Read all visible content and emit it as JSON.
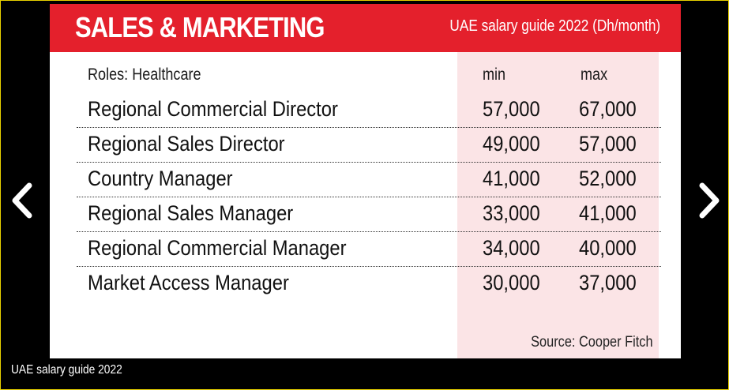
{
  "slide": {
    "banner_title": "SALES & MARKETING",
    "banner_subtitle": "UAE salary guide 2022 (Dh/month)",
    "banner_color": "#e4202c",
    "column_highlight_color": "#fbe4e6",
    "headers": {
      "roles": "Roles: Healthcare",
      "min": "min",
      "max": "max"
    },
    "rows": [
      {
        "role": "Regional Commercial Director",
        "min": "57,000",
        "max": "67,000"
      },
      {
        "role": "Regional Sales Director",
        "min": "49,000",
        "max": "57,000"
      },
      {
        "role": "Country Manager",
        "min": "41,000",
        "max": "52,000"
      },
      {
        "role": "Regional Sales Manager",
        "min": "33,000",
        "max": "41,000"
      },
      {
        "role": "Regional Commercial Manager",
        "min": "34,000",
        "max": "40,000"
      },
      {
        "role": "Market Access Manager",
        "min": "30,000",
        "max": "37,000"
      }
    ],
    "source": "Source: Cooper Fitch"
  },
  "gallery": {
    "caption": "UAE salary guide 2022",
    "prev_icon": "chevron-left-icon",
    "next_icon": "chevron-right-icon"
  }
}
